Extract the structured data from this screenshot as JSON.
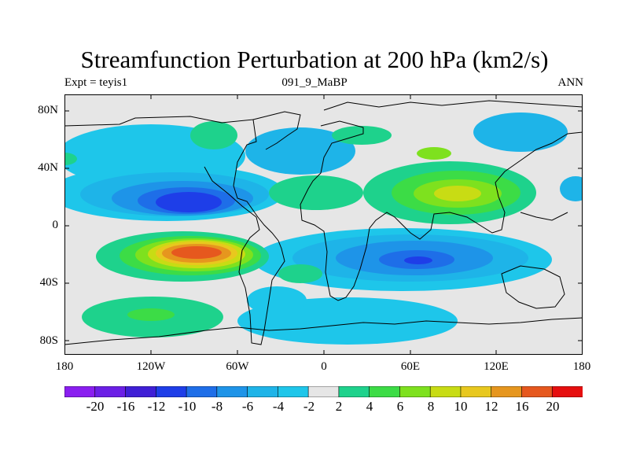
{
  "title": "Streamfunction Perturbation at 200 hPa (km2/s)",
  "subtitle_left": "Expt = teyis1",
  "subtitle_center": "091_9_MaBP",
  "subtitle_right": "ANN",
  "lat_labels": [
    "80N",
    "40N",
    "0",
    "40S",
    "80S"
  ],
  "lon_labels": [
    "180",
    "120W",
    "60W",
    "0",
    "60E",
    "120E",
    "180"
  ],
  "colorbar": {
    "labels": [
      "-20",
      "-16",
      "-12",
      "-10",
      "-8",
      "-6",
      "-4",
      "-2",
      "2",
      "4",
      "6",
      "8",
      "10",
      "12",
      "16",
      "20"
    ],
    "colors": [
      "#8a1ef0",
      "#6b1fe6",
      "#3f1fd6",
      "#1e3ee8",
      "#1e6ee8",
      "#1e94e8",
      "#1eb4e8",
      "#1ec6ea",
      "#e6e6e6",
      "#1ed28c",
      "#3cdc46",
      "#7ee11e",
      "#c8dc14",
      "#e8c81e",
      "#e6961e",
      "#e6581e",
      "#e60f0f"
    ]
  }
}
